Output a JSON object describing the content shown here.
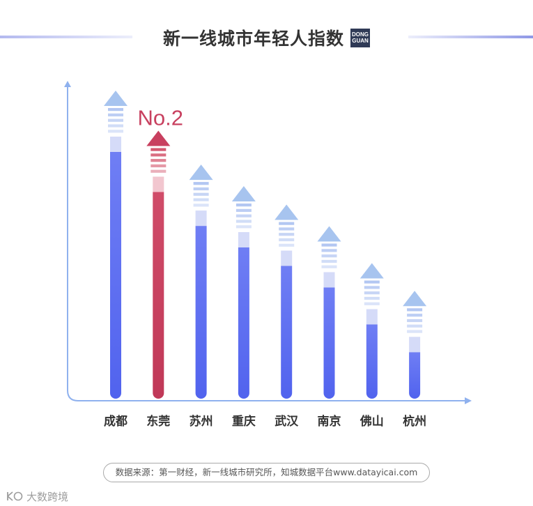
{
  "badge": {
    "line1": "DONG",
    "line2": "GUAN"
  },
  "colors": {
    "axis": "#8fb1ee",
    "label": "#333333",
    "bar": {
      "body_top": "#6f7ef4",
      "body_bottom": "#5163ee",
      "fade": "#d5dbf8",
      "stripe": "#b3c7f2",
      "arrow": "#a7c4ef"
    },
    "highlight": {
      "body_top": "#d04c69",
      "body_bottom": "#c03857",
      "fade": "#f2c6cf",
      "stripe": "#d4586f",
      "arrow": "#c8405f"
    }
  },
  "chart_data": {
    "type": "bar",
    "title": "新一线城市年轻人指数",
    "categories": [
      "成都",
      "东莞",
      "苏州",
      "重庆",
      "武汉",
      "南京",
      "佛山",
      "杭州"
    ],
    "values": [
      100,
      87,
      76,
      69,
      63,
      56,
      44,
      35
    ],
    "highlight": {
      "category": "东莞",
      "label": "No.2"
    },
    "xlabel": "",
    "ylabel": "",
    "grid": false,
    "legend": "none"
  },
  "source": "数据来源：第一财经，新一线城市研究所，知城数据平台www.datayicai.com",
  "watermark": "大数跨境"
}
